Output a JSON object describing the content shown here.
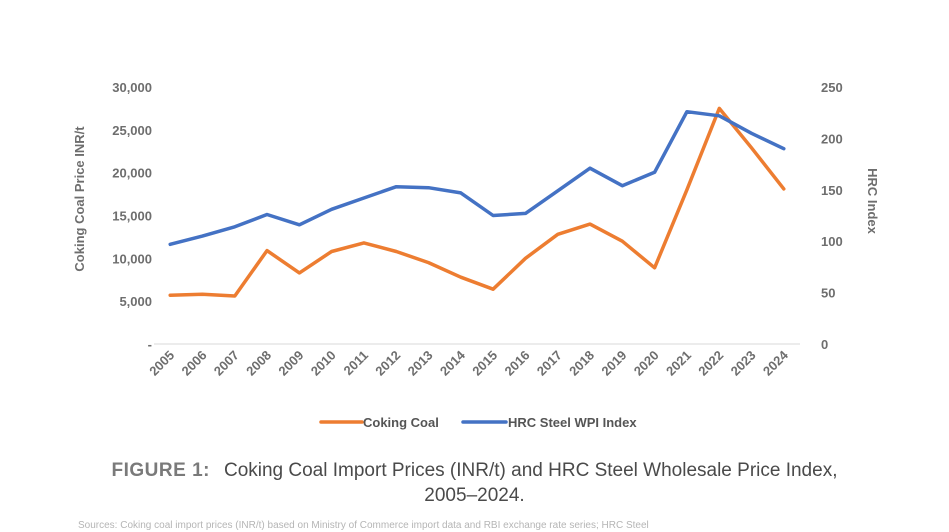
{
  "chart_data": {
    "type": "line",
    "x": [
      "2005",
      "2006",
      "2007",
      "2008",
      "2009",
      "2010",
      "2011",
      "2012",
      "2013",
      "2014",
      "2015",
      "2016",
      "2017",
      "2018",
      "2019",
      "2020",
      "2021",
      "2022",
      "2023",
      "2024"
    ],
    "series": [
      {
        "name": "Coking Coal",
        "axis": "left",
        "color": "#ED7D31",
        "values": [
          5700,
          5800,
          5600,
          10900,
          8300,
          10800,
          11800,
          10800,
          9500,
          7800,
          6400,
          10000,
          12800,
          14000,
          12000,
          8900,
          18000,
          27500,
          22900,
          18100
        ]
      },
      {
        "name": "HRC Steel WPI Index",
        "axis": "right",
        "color": "#4472C4",
        "values": [
          97,
          105,
          114,
          126,
          116,
          131,
          142,
          153,
          152,
          147,
          125,
          127,
          149,
          171,
          154,
          167,
          226,
          222,
          205,
          190
        ]
      }
    ],
    "y_left": {
      "label": "Coking Coal Price INR/t",
      "range": [
        0,
        30000
      ],
      "ticks": [
        0,
        5000,
        10000,
        15000,
        20000,
        25000,
        30000
      ],
      "tick_labels": [
        "-",
        "5,000",
        "10,000",
        "15,000",
        "20,000",
        "25,000",
        "30,000"
      ]
    },
    "y_right": {
      "label": "HRC Index",
      "range": [
        0,
        250
      ],
      "ticks": [
        0,
        50,
        100,
        150,
        200,
        250
      ],
      "tick_labels": [
        "0",
        "50",
        "100",
        "150",
        "200",
        "250"
      ]
    },
    "grid": false,
    "legend_position": "bottom"
  },
  "caption": {
    "label": "FIGURE 1:",
    "line1": "Coking Coal Import Prices (INR/t) and HRC Steel Wholesale Price Index,",
    "line2": "2005–2024."
  },
  "source_text": "Sources: Coking coal import prices (INR/t) based on Ministry of Commerce import data and RBI exchange rate series; HRC Steel"
}
